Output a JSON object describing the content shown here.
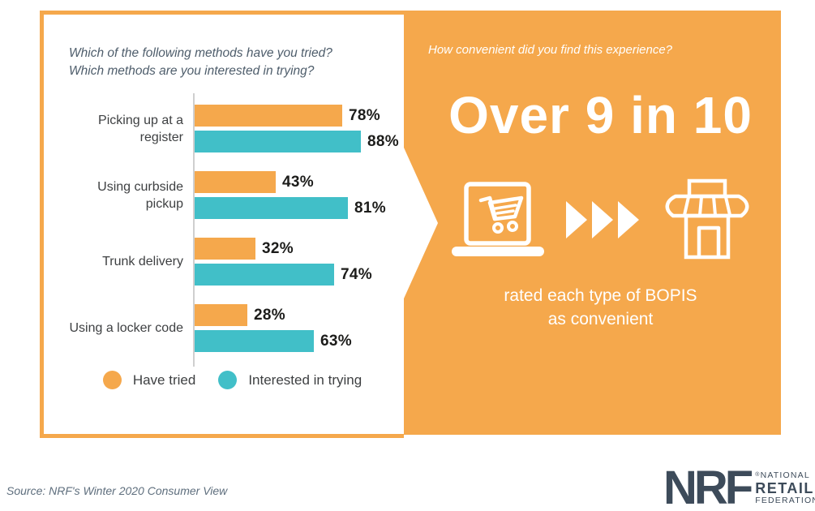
{
  "left_panel": {
    "question_line1": "Which of the following methods have you tried?",
    "question_line2": "Which methods are you interested in trying?"
  },
  "chart_data": {
    "type": "bar",
    "orientation": "horizontal",
    "title": "Which of the following methods have you tried? Which methods are you interested in trying?",
    "categories": [
      "Picking up at a register",
      "Using curbside pickup",
      "Trunk delivery",
      "Using a locker code"
    ],
    "series": [
      {
        "name": "Have tried",
        "color": "#F5A84C",
        "values": [
          78,
          43,
          32,
          28
        ]
      },
      {
        "name": "Interested in trying",
        "color": "#41BFC8",
        "values": [
          88,
          81,
          74,
          63
        ]
      }
    ],
    "value_suffix": "%",
    "xlim": [
      0,
      100
    ],
    "grid": false,
    "legend_position": "bottom"
  },
  "right_panel": {
    "question": "How convenient did you find this experience?",
    "headline": "Over 9 in 10",
    "subtext_line1": "rated each type of BOPIS",
    "subtext_line2": "as convenient",
    "icons": [
      "laptop-cart-icon",
      "triple-arrow-icon",
      "storefront-icon"
    ]
  },
  "footer": {
    "source": "Source: NRF's Winter 2020 Consumer View",
    "logo": {
      "acronym": "NRF",
      "line1": "NATIONAL",
      "line2": "RETAIL",
      "line3": "FEDERATION",
      "reg": "®"
    }
  },
  "colors": {
    "accent_orange": "#F5A84C",
    "accent_teal": "#41BFC8",
    "brand_slate": "#3D4B5A",
    "text_dark": "#3E4042",
    "text_bluegray": "#4E5D6B",
    "white": "#FFFFFF"
  }
}
